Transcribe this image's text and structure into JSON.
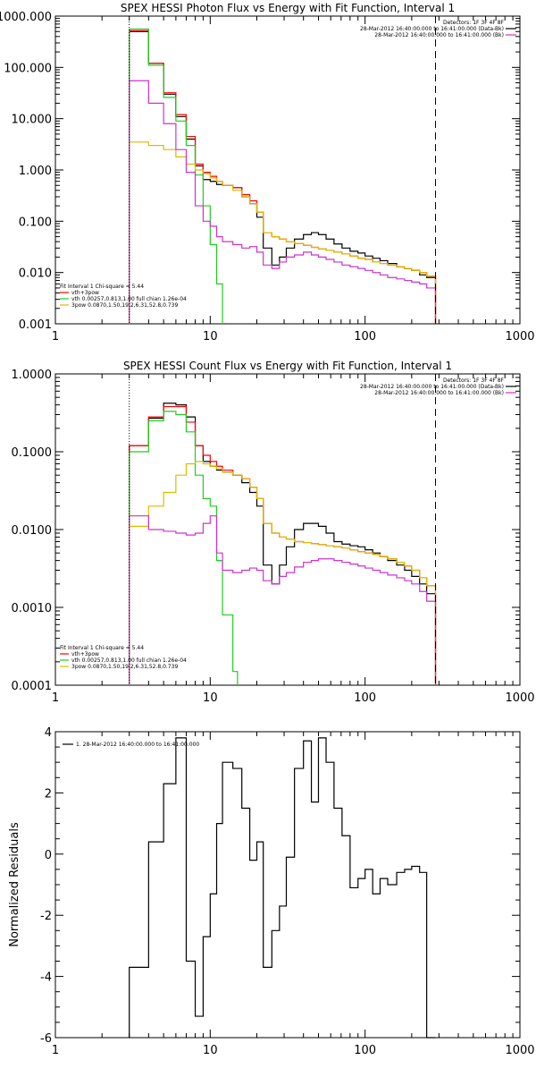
{
  "chart_data": [
    {
      "type": "line",
      "title": "SPEX HESSI Photon Flux vs Energy with Fit Function, Interval 1",
      "xscale": "log",
      "yscale": "log",
      "xlim": [
        1,
        1000
      ],
      "ylim": [
        0.001,
        1000
      ],
      "xticks": [
        {
          "v": 1,
          "label": "1"
        },
        {
          "v": 10,
          "label": "10"
        },
        {
          "v": 100,
          "label": "100"
        },
        {
          "v": 1000,
          "label": "1000"
        }
      ],
      "yticks": [
        {
          "v": 0.001,
          "label": "0.001"
        },
        {
          "v": 0.01,
          "label": "0.010"
        },
        {
          "v": 0.1,
          "label": "0.100"
        },
        {
          "v": 1,
          "label": "1.000"
        },
        {
          "v": 10,
          "label": "10.000"
        },
        {
          "v": 100,
          "label": "100.000"
        },
        {
          "v": 1000,
          "label": "1000.000"
        }
      ],
      "vlines": [
        {
          "x": 3,
          "style": "dotted",
          "color": "#000000"
        },
        {
          "x": 285,
          "style": "dashed",
          "color": "#000000"
        }
      ],
      "legend_top": {
        "lines": [
          "Detectors: 1F 3F 4F 8F",
          "28-Mar-2012 16:40:00.000 to 16:41:00.000 (Data-Bk)",
          "28-Mar-2012 16:40:00.000 to 16:41:00.000 (Bk)"
        ],
        "colors": [
          "",
          "#000000",
          "#cc33cc"
        ]
      },
      "legend_bottom": {
        "lines": [
          "Fit Interval 1    Chi-square = 5.44",
          "vth+3pow",
          "vth 0.00257,0.813,1.00   full chian 1.26e-04",
          "3pow 0.0870,1.50,19.2,6.31,52.8,0.739"
        ],
        "colors": [
          "",
          "#ff0000",
          "#22cc22",
          "#ddbb00"
        ]
      },
      "series": [
        {
          "color": "#000000",
          "edges": [
            3,
            4,
            5,
            6,
            7,
            8,
            9,
            10,
            11,
            12,
            14,
            16,
            18,
            20,
            22,
            25,
            28,
            31,
            35,
            40,
            45,
            50,
            56,
            63,
            71,
            80,
            90,
            100,
            112,
            125,
            140,
            160,
            180,
            200,
            225,
            250,
            285
          ],
          "values": [
            500,
            120,
            30,
            11,
            4,
            1.2,
            0.65,
            0.6,
            0.52,
            0.5,
            0.45,
            0.3,
            0.22,
            0.12,
            0.03,
            0.014,
            0.02,
            0.03,
            0.045,
            0.055,
            0.06,
            0.055,
            0.045,
            0.036,
            0.03,
            0.026,
            0.024,
            0.021,
            0.019,
            0.017,
            0.015,
            0.013,
            0.012,
            0.011,
            0.009,
            0.008
          ]
        },
        {
          "color": "#ff0000",
          "edges": [
            3,
            4,
            5,
            6,
            7,
            8,
            9,
            10,
            11,
            12,
            14,
            16,
            18,
            20,
            22,
            25,
            28,
            31,
            35,
            40,
            45,
            50,
            56,
            63,
            71,
            80,
            90,
            100,
            112,
            125,
            140,
            160,
            180,
            200,
            225,
            250,
            285
          ],
          "values": [
            520,
            120,
            32,
            12,
            4.5,
            1.3,
            0.9,
            0.75,
            0.6,
            0.5,
            0.45,
            0.33,
            0.25,
            0.15,
            0.06,
            0.05,
            0.045,
            0.04,
            0.037,
            0.034,
            0.031,
            0.029,
            0.027,
            0.025,
            0.023,
            0.021,
            0.019,
            0.018,
            0.016,
            0.015,
            0.014,
            0.013,
            0.012,
            0.011,
            0.01,
            0.0085
          ]
        },
        {
          "color": "#22cc22",
          "edges": [
            3,
            4,
            5,
            6,
            7,
            8,
            9,
            10,
            11,
            12
          ],
          "values": [
            560,
            110,
            26,
            9,
            3,
            0.8,
            0.2,
            0.035,
            0.006,
            0.0015
          ]
        },
        {
          "color": "#ddbb00",
          "edges": [
            3,
            4,
            5,
            6,
            7,
            8,
            9,
            10,
            11,
            12,
            14,
            16,
            18,
            20,
            22,
            25,
            28,
            31,
            35,
            40,
            45,
            50,
            56,
            63,
            71,
            80,
            90,
            100,
            112,
            125,
            140,
            160,
            180,
            200,
            225,
            250,
            285
          ],
          "values": [
            3.5,
            3,
            2.5,
            1.8,
            1.3,
            1.0,
            0.85,
            0.7,
            0.6,
            0.5,
            0.4,
            0.3,
            0.22,
            0.15,
            0.06,
            0.05,
            0.045,
            0.04,
            0.037,
            0.034,
            0.031,
            0.029,
            0.027,
            0.025,
            0.023,
            0.021,
            0.019,
            0.018,
            0.016,
            0.015,
            0.014,
            0.013,
            0.012,
            0.011,
            0.01,
            0.0085
          ]
        },
        {
          "color": "#cc33cc",
          "edges": [
            3,
            4,
            5,
            6,
            7,
            8,
            9,
            10,
            11,
            12,
            14,
            16,
            18,
            20,
            22,
            25,
            28,
            31,
            35,
            40,
            45,
            50,
            56,
            63,
            71,
            80,
            90,
            100,
            112,
            125,
            140,
            160,
            180,
            200,
            225,
            250,
            285
          ],
          "values": [
            55,
            20,
            8,
            2.5,
            0.9,
            0.2,
            0.1,
            0.08,
            0.05,
            0.04,
            0.035,
            0.03,
            0.032,
            0.025,
            0.014,
            0.012,
            0.016,
            0.02,
            0.022,
            0.025,
            0.022,
            0.02,
            0.018,
            0.016,
            0.014,
            0.013,
            0.012,
            0.011,
            0.01,
            0.009,
            0.008,
            0.0075,
            0.007,
            0.0065,
            0.006,
            0.005
          ]
        }
      ],
      "plot": {
        "x0": 62,
        "x1": 582,
        "y0": 18,
        "y1": 362
      }
    },
    {
      "type": "line",
      "title": "SPEX HESSI Count Flux vs Energy with Fit Function, Interval 1",
      "xscale": "log",
      "yscale": "log",
      "xlim": [
        1,
        1000
      ],
      "ylim": [
        0.0001,
        1.0
      ],
      "xticks": [
        {
          "v": 1,
          "label": "1"
        },
        {
          "v": 10,
          "label": "10"
        },
        {
          "v": 100,
          "label": "100"
        },
        {
          "v": 1000,
          "label": "1000"
        }
      ],
      "yticks": [
        {
          "v": 0.0001,
          "label": "0.0001"
        },
        {
          "v": 0.001,
          "label": "0.0010"
        },
        {
          "v": 0.01,
          "label": "0.0100"
        },
        {
          "v": 0.1,
          "label": "0.1000"
        },
        {
          "v": 1.0,
          "label": "1.0000"
        }
      ],
      "vlines": [
        {
          "x": 3,
          "style": "dotted",
          "color": "#000000"
        },
        {
          "x": 285,
          "style": "dashed",
          "color": "#000000"
        }
      ],
      "legend_top": {
        "lines": [
          "Detectors: 1F 3F 4F 8F",
          "28-Mar-2012 16:40:00.000 to 16:41:00.000 (Data-Bk)",
          "28-Mar-2012 16:40:00.000 to 16:41:00.000 (Bk)"
        ],
        "colors": [
          "",
          "#000000",
          "#cc33cc"
        ]
      },
      "legend_bottom": {
        "lines": [
          "Fit Interval 1    Chi-square = 5.44",
          "vth+3pow",
          "vth 0.00257,0.813,1.00   full chian 1.26e-04",
          "3pow 0.0870,1.50,19.2,6.31,52.8,0.739"
        ],
        "colors": [
          "",
          "#ff0000",
          "#22cc22",
          "#ddbb00"
        ]
      },
      "series": [
        {
          "color": "#000000",
          "edges": [
            3,
            4,
            5,
            6,
            7,
            8,
            9,
            10,
            11,
            12,
            14,
            16,
            18,
            20,
            22,
            25,
            28,
            31,
            35,
            40,
            45,
            50,
            56,
            63,
            71,
            80,
            90,
            100,
            112,
            125,
            140,
            160,
            180,
            200,
            225,
            250,
            285
          ],
          "values": [
            0.12,
            0.27,
            0.42,
            0.4,
            0.28,
            0.12,
            0.075,
            0.065,
            0.058,
            0.055,
            0.05,
            0.04,
            0.03,
            0.02,
            0.0035,
            0.002,
            0.0035,
            0.006,
            0.01,
            0.012,
            0.012,
            0.011,
            0.009,
            0.007,
            0.0065,
            0.0062,
            0.006,
            0.0055,
            0.005,
            0.0045,
            0.004,
            0.0035,
            0.003,
            0.0025,
            0.002,
            0.0015
          ]
        },
        {
          "color": "#ff0000",
          "edges": [
            3,
            4,
            5,
            6,
            7,
            8,
            9,
            10,
            11,
            12,
            14,
            16,
            18,
            20,
            22,
            25,
            28,
            31,
            35,
            40,
            45,
            50,
            56,
            63,
            71,
            80,
            90,
            100,
            112,
            125,
            140,
            160,
            180,
            200,
            225,
            250,
            285
          ],
          "values": [
            0.12,
            0.28,
            0.38,
            0.38,
            0.24,
            0.12,
            0.09,
            0.075,
            0.065,
            0.058,
            0.05,
            0.045,
            0.035,
            0.025,
            0.012,
            0.009,
            0.008,
            0.0075,
            0.007,
            0.0068,
            0.0066,
            0.0064,
            0.0062,
            0.006,
            0.0058,
            0.0055,
            0.0052,
            0.005,
            0.0048,
            0.0045,
            0.0042,
            0.0038,
            0.0034,
            0.003,
            0.0024,
            0.0019
          ]
        },
        {
          "color": "#22cc22",
          "edges": [
            3,
            4,
            5,
            6,
            7,
            8,
            9,
            10,
            11,
            12,
            14,
            15
          ],
          "values": [
            0.1,
            0.25,
            0.33,
            0.3,
            0.18,
            0.05,
            0.025,
            0.02,
            0.004,
            0.0008,
            0.00015
          ]
        },
        {
          "color": "#ddbb00",
          "edges": [
            3,
            4,
            5,
            6,
            7,
            8,
            9,
            10,
            11,
            12,
            14,
            16,
            18,
            20,
            22,
            25,
            28,
            31,
            35,
            40,
            45,
            50,
            56,
            63,
            71,
            80,
            90,
            100,
            112,
            125,
            140,
            160,
            180,
            200,
            225,
            250,
            285
          ],
          "values": [
            0.011,
            0.02,
            0.03,
            0.05,
            0.07,
            0.075,
            0.07,
            0.065,
            0.06,
            0.055,
            0.05,
            0.045,
            0.035,
            0.025,
            0.012,
            0.009,
            0.008,
            0.0075,
            0.007,
            0.0068,
            0.0066,
            0.0064,
            0.0062,
            0.006,
            0.0058,
            0.0055,
            0.0052,
            0.005,
            0.0048,
            0.0045,
            0.0042,
            0.0038,
            0.0034,
            0.003,
            0.0024,
            0.0019
          ]
        },
        {
          "color": "#cc33cc",
          "edges": [
            3,
            4,
            5,
            6,
            7,
            8,
            9,
            10,
            11,
            12,
            14,
            16,
            18,
            20,
            22,
            25,
            28,
            31,
            35,
            40,
            45,
            50,
            56,
            63,
            71,
            80,
            90,
            100,
            112,
            125,
            140,
            160,
            180,
            200,
            225,
            250,
            285
          ],
          "values": [
            0.015,
            0.01,
            0.0095,
            0.009,
            0.0085,
            0.009,
            0.012,
            0.015,
            0.005,
            0.003,
            0.0028,
            0.003,
            0.0032,
            0.003,
            0.0022,
            0.002,
            0.0025,
            0.0028,
            0.0033,
            0.0038,
            0.004,
            0.0042,
            0.0042,
            0.004,
            0.0038,
            0.0036,
            0.0034,
            0.0032,
            0.003,
            0.0028,
            0.0026,
            0.0024,
            0.0022,
            0.002,
            0.0016,
            0.0012
          ]
        }
      ],
      "plot": {
        "x0": 62,
        "x1": 582,
        "y0": 418,
        "y1": 766
      }
    },
    {
      "type": "line",
      "title": "",
      "xscale": "log",
      "yscale": "linear",
      "xlim": [
        1,
        1000
      ],
      "ylim": [
        -6,
        4
      ],
      "xticks": [
        {
          "v": 1,
          "label": "1"
        },
        {
          "v": 10,
          "label": "10"
        },
        {
          "v": 100,
          "label": "100"
        },
        {
          "v": 1000,
          "label": "1000"
        }
      ],
      "yticks": [
        {
          "v": -6,
          "label": "-6"
        },
        {
          "v": -4,
          "label": "-4"
        },
        {
          "v": -2,
          "label": "-2"
        },
        {
          "v": 0,
          "label": "0"
        },
        {
          "v": 2,
          "label": "2"
        },
        {
          "v": 4,
          "label": "4"
        }
      ],
      "ylabel": "Normalized Residuals",
      "legend_top_left": "1. 28-Mar-2012 16:40:00.000 to 16:41:00.000",
      "series": [
        {
          "color": "#000000",
          "edges": [
            3,
            4,
            5,
            6,
            7,
            8,
            9,
            10,
            11,
            12,
            14,
            16,
            18,
            20,
            22,
            25,
            28,
            31,
            35,
            40,
            45,
            50,
            56,
            63,
            71,
            80,
            90,
            100,
            112,
            125,
            140,
            160,
            180,
            200,
            225,
            250,
            285
          ],
          "values": [
            -3.7,
            0.4,
            2.3,
            3.8,
            -3.5,
            -5.3,
            -2.7,
            -1.3,
            1.0,
            3.0,
            2.8,
            1.5,
            -0.2,
            0.4,
            -3.7,
            -2.5,
            -1.7,
            -0.1,
            2.8,
            3.7,
            1.7,
            3.8,
            3.0,
            1.5,
            0.6,
            -1.1,
            -0.8,
            -0.5,
            -1.3,
            -0.8,
            -1.0,
            -0.6,
            -0.5,
            -0.4,
            -0.6,
            -6.0
          ]
        }
      ],
      "plot": {
        "x0": 62,
        "x1": 582,
        "y0": 818,
        "y1": 1160
      }
    }
  ]
}
